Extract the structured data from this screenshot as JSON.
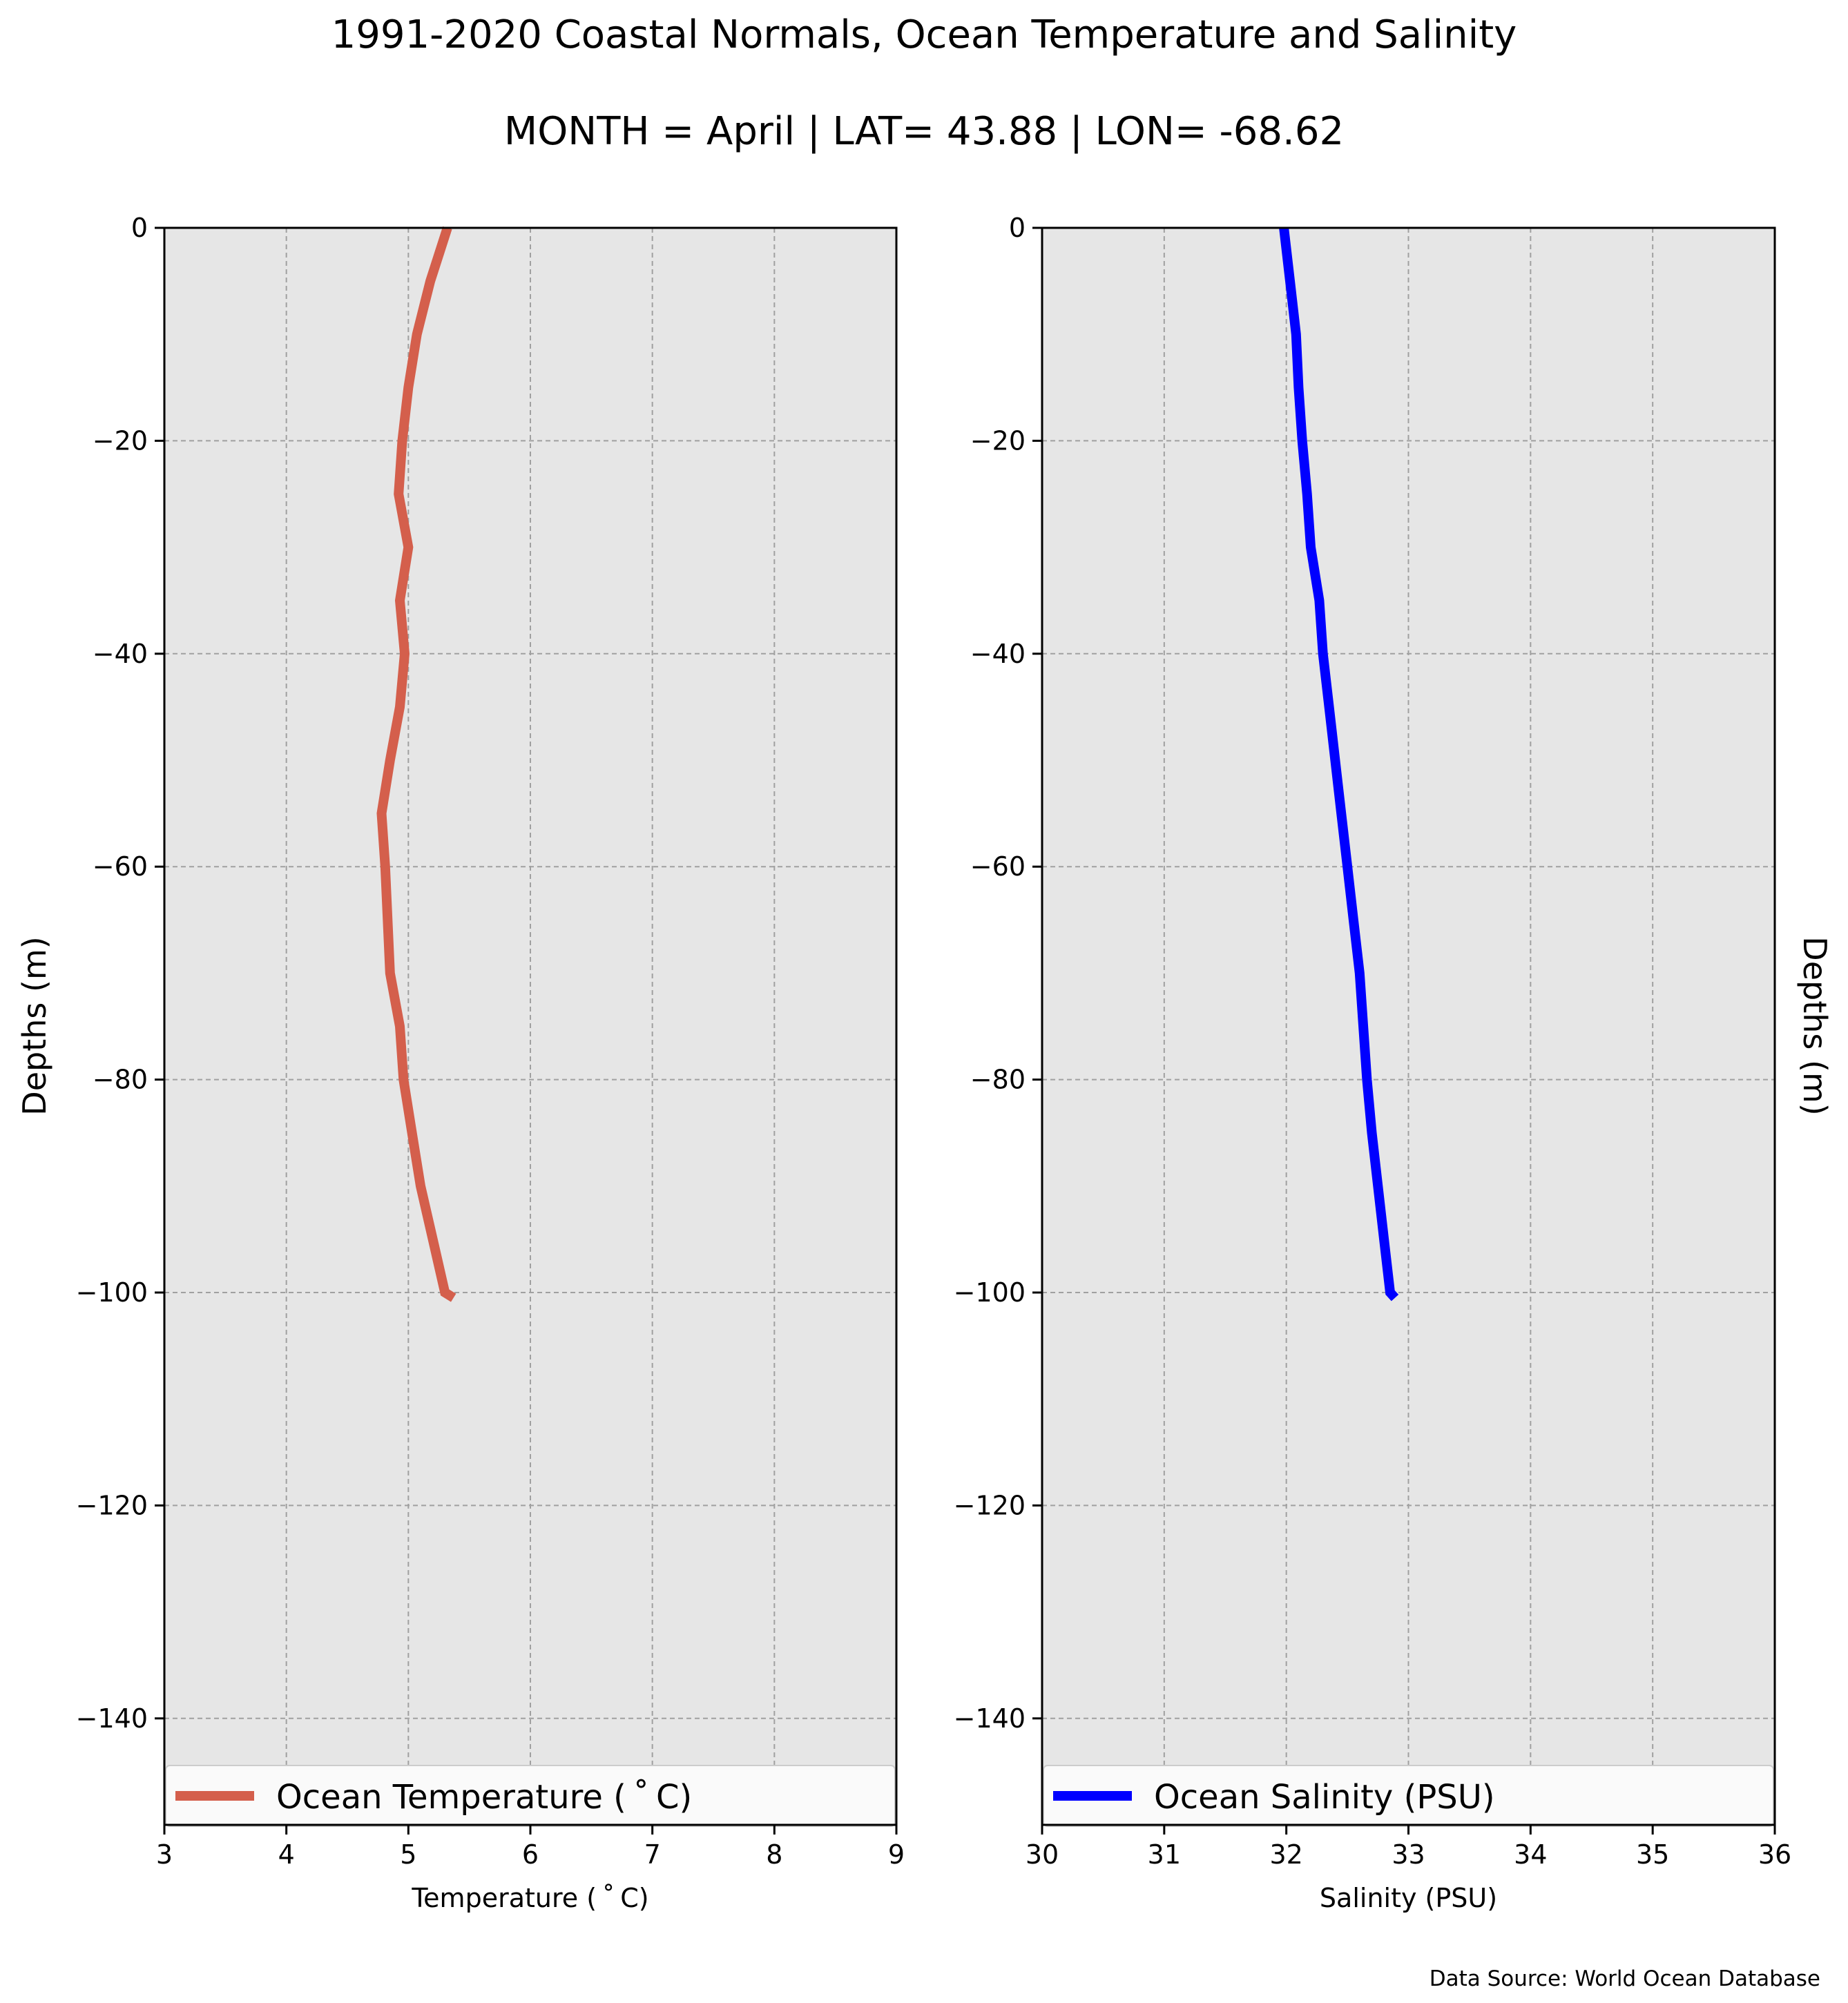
{
  "title": "1991-2020 Coastal Normals, Ocean Temperature and Salinity",
  "subtitle": "MONTH = April | LAT= 43.88 | LON= -68.62",
  "source": "Data Source: World Ocean Database",
  "colors": {
    "panel_bg": "#e6e6e6",
    "grid": "#a0a0a0",
    "temperature": "#d45f4c",
    "salinity": "#0000ff"
  },
  "chart_data": [
    {
      "type": "line",
      "xlabel": "Temperature ($^\\circ$C)",
      "xlabel_display": "Temperature ( ˚ C)",
      "ylabel": "Depths (m)",
      "xlim": [
        3,
        9
      ],
      "ylim": [
        -150,
        0
      ],
      "xticks": [
        3,
        4,
        5,
        6,
        7,
        8,
        9
      ],
      "yticks": [
        0,
        -20,
        -40,
        -60,
        -80,
        -100,
        -120,
        -140
      ],
      "grid": true,
      "legend": "lower center",
      "series": [
        {
          "name": "Ocean Temperature ( ˚ C)",
          "color": "#d45f4c",
          "x": [
            5.32,
            5.18,
            5.07,
            5.0,
            4.95,
            4.92,
            5.0,
            4.93,
            4.97,
            4.93,
            4.85,
            4.78,
            4.81,
            4.83,
            4.85,
            4.93,
            4.96,
            5.03,
            5.1,
            5.2,
            5.3,
            5.37
          ],
          "y": [
            0,
            -5,
            -10,
            -15,
            -20,
            -25,
            -30,
            -35,
            -40,
            -45,
            -50,
            -55,
            -60,
            -65,
            -70,
            -75,
            -80,
            -85,
            -90,
            -95,
            -100,
            -100.5
          ]
        }
      ]
    },
    {
      "type": "line",
      "xlabel": "Salinity (PSU)",
      "ylabel": "Depths (m)",
      "xlim": [
        30,
        36
      ],
      "ylim": [
        -150,
        0
      ],
      "xticks": [
        30,
        31,
        32,
        33,
        34,
        35,
        36
      ],
      "yticks": [
        0,
        -20,
        -40,
        -60,
        -80,
        -100,
        -120,
        -140
      ],
      "grid": true,
      "legend": "lower center",
      "series": [
        {
          "name": "Ocean Salinity (PSU)",
          "color": "#0000ff",
          "x": [
            31.98,
            32.03,
            32.08,
            32.1,
            32.13,
            32.17,
            32.2,
            32.27,
            32.3,
            32.35,
            32.4,
            32.45,
            32.5,
            32.55,
            32.6,
            32.63,
            32.66,
            32.7,
            32.75,
            32.8,
            32.85,
            32.89
          ],
          "y": [
            0,
            -5,
            -10,
            -15,
            -20,
            -25,
            -30,
            -35,
            -40,
            -45,
            -50,
            -55,
            -60,
            -65,
            -70,
            -75,
            -80,
            -85,
            -90,
            -95,
            -100,
            -100.5
          ]
        }
      ]
    }
  ]
}
